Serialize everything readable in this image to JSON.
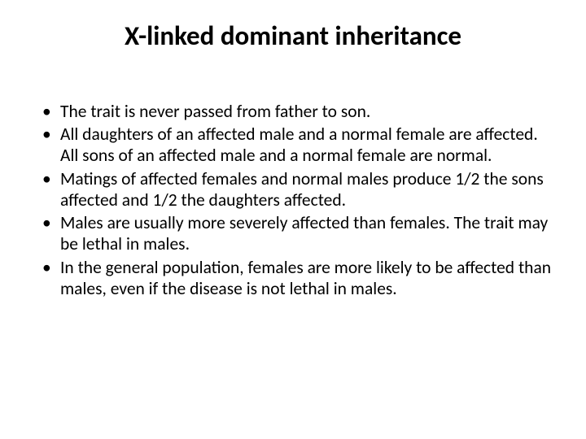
{
  "slide": {
    "title": "X-linked dominant inheritance",
    "bullets": [
      "The trait is never passed from father to son.",
      "All daughters of an affected male and a normal female are affected. All sons of an affected male and a normal female are normal.",
      "Matings of affected females and normal males produce 1/2 the sons affected and 1/2 the daughters affected.",
      "Males are usually more severely affected than females. The trait may be lethal in males.",
      "In the general population, females are more likely to be affected than males, even if the disease is not lethal in males."
    ],
    "style": {
      "title_fontsize": 33,
      "title_fontweight": "bold",
      "body_fontsize": 21.5,
      "text_color": "#000000",
      "background_color": "#ffffff",
      "font_family": "Calibri"
    }
  }
}
